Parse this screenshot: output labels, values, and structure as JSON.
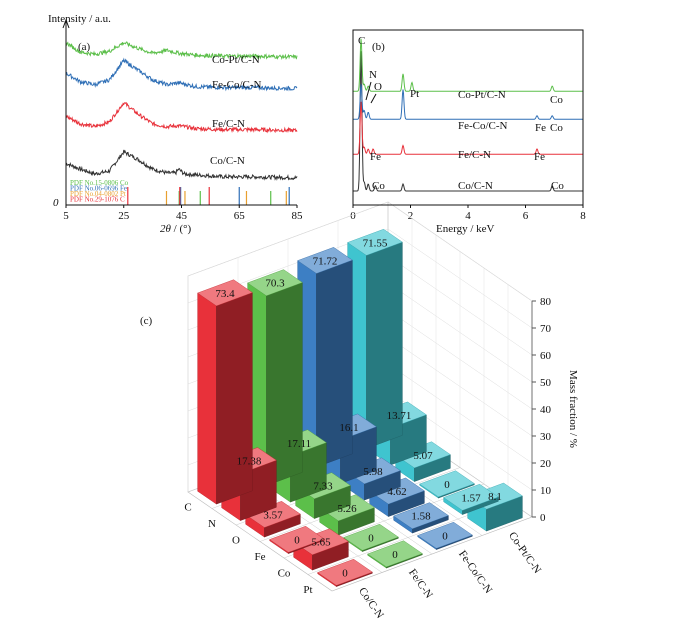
{
  "chart_data": [
    {
      "type": "line",
      "panel": "(a)",
      "ylabel": "Intensity / a.u.",
      "xlabel_var": "2θ",
      "xlabel_unit": " / (°)",
      "x_ticks": [
        5,
        25,
        45,
        65,
        85
      ],
      "y_origin_label": "0",
      "xlim": [
        5,
        85
      ],
      "series": [
        {
          "name": "Co/C-N",
          "color": "#333333",
          "baseline": 0.15,
          "x": [
            5,
            10,
            15,
            20,
            25,
            30,
            35,
            40,
            43,
            44,
            46,
            50,
            60,
            70,
            85
          ],
          "y": [
            0.16,
            0.1,
            0.05,
            0.08,
            0.28,
            0.2,
            0.1,
            0.06,
            0.06,
            0.1,
            0.05,
            0.04,
            0.02,
            0.02,
            0.01
          ]
        },
        {
          "name": "Fe/C-N",
          "color": "#e8313a",
          "baseline": 0.42,
          "x": [
            5,
            10,
            15,
            20,
            25,
            30,
            35,
            40,
            44,
            50,
            60,
            70,
            85
          ],
          "y": [
            0.16,
            0.08,
            0.05,
            0.1,
            0.3,
            0.18,
            0.08,
            0.05,
            0.06,
            0.03,
            0.02,
            0.02,
            0.01
          ]
        },
        {
          "name": "Fe-Co/C-N",
          "color": "#2f6fb6",
          "baseline": 0.66,
          "x": [
            5,
            10,
            15,
            20,
            25,
            30,
            35,
            40,
            44,
            50,
            60,
            70,
            85
          ],
          "y": [
            0.17,
            0.08,
            0.05,
            0.1,
            0.3,
            0.2,
            0.1,
            0.05,
            0.07,
            0.03,
            0.02,
            0.02,
            0.01
          ]
        },
        {
          "name": "Co-Pt/C-N",
          "color": "#5cbf4a",
          "baseline": 0.84,
          "x": [
            5,
            10,
            15,
            20,
            25,
            30,
            35,
            40,
            44,
            50,
            60,
            70,
            85
          ],
          "y": [
            0.16,
            0.06,
            0.04,
            0.07,
            0.16,
            0.1,
            0.05,
            0.08,
            0.05,
            0.03,
            0.02,
            0.02,
            0.01
          ]
        }
      ],
      "reference_lines": [
        {
          "label": "PDF No.15-0806  Co",
          "color": "#5cbf4a",
          "peaks": [
            44.2,
            51.5,
            75.9
          ]
        },
        {
          "label": "PDF No.06-0696  Fe",
          "color": "#2f6fb6",
          "peaks": [
            44.7,
            65.0,
            82.3
          ]
        },
        {
          "label": "PDF No.04-0802  Pt",
          "color": "#e8a030",
          "peaks": [
            39.8,
            46.2,
            67.5,
            81.3
          ]
        },
        {
          "label": "PDF No.29-1076  C",
          "color": "#e8313a",
          "peaks": [
            26.4,
            44.4,
            54.6
          ]
        }
      ]
    },
    {
      "type": "line",
      "panel": "(b)",
      "xlabel": "Energy / keV",
      "x_ticks": [
        0,
        2,
        4,
        6,
        8
      ],
      "xlim": [
        0,
        8
      ],
      "series": [
        {
          "name": "Co/C-N",
          "color": "#333333",
          "baseline": 0.08,
          "peaks": [
            {
              "x": 0.28,
              "h": 0.8
            },
            {
              "x": 0.39,
              "h": 0.05
            },
            {
              "x": 0.53,
              "h": 0.04
            },
            {
              "x": 0.78,
              "h": 0.03
            },
            {
              "x": 1.74,
              "h": 0.04
            },
            {
              "x": 6.93,
              "h": 0.03
            }
          ]
        },
        {
          "name": "Fe/C-N",
          "color": "#e8313a",
          "baseline": 0.29,
          "peaks": [
            {
              "x": 0.28,
              "h": 0.3
            },
            {
              "x": 0.39,
              "h": 0.04
            },
            {
              "x": 0.53,
              "h": 0.03
            },
            {
              "x": 0.7,
              "h": 0.03
            },
            {
              "x": 1.74,
              "h": 0.05
            },
            {
              "x": 6.4,
              "h": 0.03
            }
          ]
        },
        {
          "name": "Fe-Co/C-N",
          "color": "#2f6fb6",
          "baseline": 0.49,
          "peaks": [
            {
              "x": 0.28,
              "h": 0.2
            },
            {
              "x": 0.39,
              "h": 0.05
            },
            {
              "x": 0.53,
              "h": 0.04
            },
            {
              "x": 1.74,
              "h": 0.17
            },
            {
              "x": 6.4,
              "h": 0.02
            },
            {
              "x": 6.93,
              "h": 0.02
            }
          ]
        },
        {
          "name": "Co-Pt/C-N",
          "color": "#5cbf4a",
          "baseline": 0.65,
          "peaks": [
            {
              "x": 0.28,
              "h": 0.3
            },
            {
              "x": 0.39,
              "h": 0.04
            },
            {
              "x": 0.53,
              "h": 0.03
            },
            {
              "x": 1.74,
              "h": 0.1
            },
            {
              "x": 2.05,
              "h": 0.05
            },
            {
              "x": 6.93,
              "h": 0.03
            }
          ]
        }
      ],
      "annotations": [
        {
          "text": "C",
          "series": "Co-Pt/C-N"
        },
        {
          "text": "N",
          "series": "Co-Pt/C-N"
        },
        {
          "text": "O",
          "series": "Co-Pt/C-N"
        },
        {
          "text": "Pt",
          "series": "Co-Pt/C-N"
        },
        {
          "text": "Co",
          "series": "Co-Pt/C-N"
        },
        {
          "text": "Fe",
          "series": "Fe-Co/C-N"
        },
        {
          "text": "Co",
          "series": "Fe-Co/C-N"
        },
        {
          "text": "Fe",
          "series": "Fe/C-N"
        },
        {
          "text": "Fe",
          "series": "Fe/C-N"
        },
        {
          "text": "Co",
          "series": "Co/C-N"
        },
        {
          "text": "Co",
          "series": "Co/C-N"
        }
      ]
    },
    {
      "type": "bar3d",
      "panel": "(c)",
      "zlabel": "Mass fraction / %",
      "categories": [
        "C",
        "N",
        "O",
        "Fe",
        "Co",
        "Pt"
      ],
      "z_ticks": [
        0,
        10,
        20,
        30,
        40,
        50,
        60,
        70,
        80
      ],
      "zlim": [
        0,
        80
      ],
      "series": [
        {
          "name": "Co/C-N",
          "color": "#e8313a",
          "values": [
            73.4,
            17.38,
            3.57,
            0,
            5.65,
            0
          ]
        },
        {
          "name": "Fe/C-N",
          "color": "#5cbf4a",
          "values": [
            70.3,
            17.11,
            7.33,
            5.26,
            0,
            0
          ]
        },
        {
          "name": "Fe-Co/C-N",
          "color": "#3d7fc4",
          "values": [
            71.72,
            16.1,
            5.98,
            4.62,
            1.58,
            0
          ]
        },
        {
          "name": "Co-Pt/C-N",
          "color": "#3fc4cf",
          "values": [
            71.55,
            13.71,
            5.07,
            0,
            1.57,
            8.1
          ]
        }
      ],
      "value_labels": [
        [
          "73.4",
          "17.38",
          "3.57",
          "0",
          "5.65",
          "0"
        ],
        [
          "70.3",
          "17.11",
          "7.33",
          "5.26",
          "0",
          "0"
        ],
        [
          "71.72",
          "16.1",
          "5.98",
          "4.62",
          "1.58",
          "0"
        ],
        [
          "71.55",
          "13.71",
          "5.07",
          "0",
          "1.57",
          "8.1"
        ]
      ]
    }
  ]
}
